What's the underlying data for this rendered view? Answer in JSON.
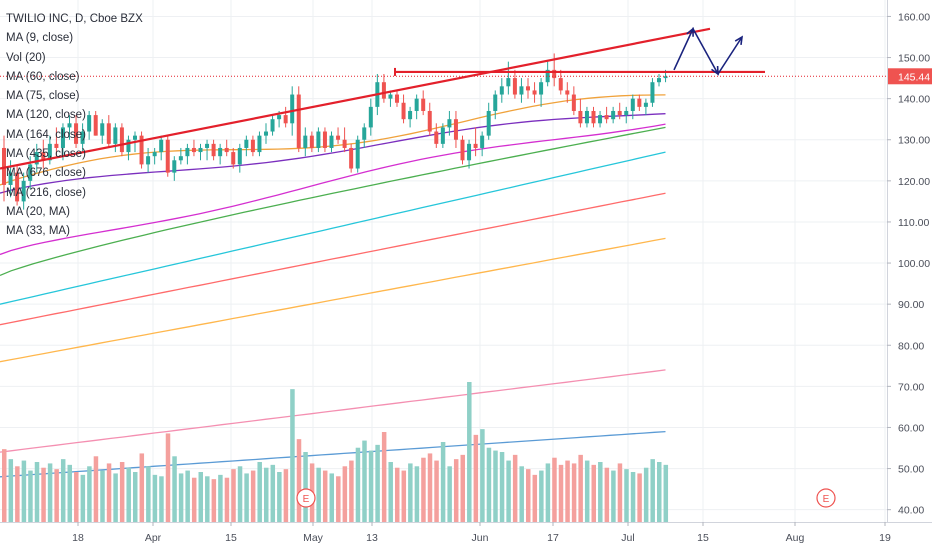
{
  "header": {
    "symbol_line": "TWILIO INC, D, Cboe BZX"
  },
  "legend_items": [
    "MA (9, close)",
    "Vol (20)",
    "MA (60, close)",
    "MA (75, close)",
    "MA (120, close)",
    "MA (164, close)",
    "MA (435, close)",
    "MA (676, close)",
    "MA (216, close)",
    "MA (20, MA)",
    "MA (33, MA)"
  ],
  "price_axis": {
    "ticks": [
      "160.00",
      "150.00",
      "140.00",
      "130.00",
      "120.00",
      "110.00",
      "100.00",
      "90.00",
      "80.00",
      "70.00",
      "60.00",
      "50.00",
      "40.00"
    ],
    "current_price_label": "145.44"
  },
  "time_axis": {
    "ticks": [
      "18",
      "Apr",
      "15",
      "May",
      "13",
      "Jun",
      "17",
      "Jul",
      "15",
      "Aug",
      "19"
    ]
  },
  "events": {
    "label": "E"
  },
  "colors": {
    "up": "#26a69a",
    "down": "#ef5350",
    "vol_up": "#8fd0c7",
    "vol_down": "#f4a09d",
    "trendline": "#e3202b",
    "projection": "#1a237e",
    "price_label_bg": "#ef5350",
    "grid": "#eef0f3"
  },
  "chart_data": {
    "type": "candlestick",
    "y_axis_range": [
      37,
      164
    ],
    "candles": [
      {
        "o": 128,
        "h": 131,
        "l": 115,
        "c": 119,
        "v": 5100
      },
      {
        "o": 119,
        "h": 125,
        "l": 116,
        "c": 122,
        "v": 4400
      },
      {
        "o": 122,
        "h": 124,
        "l": 114,
        "c": 115,
        "v": 3900
      },
      {
        "o": 115,
        "h": 122,
        "l": 113,
        "c": 120,
        "v": 4300
      },
      {
        "o": 120,
        "h": 126,
        "l": 118,
        "c": 124,
        "v": 3600
      },
      {
        "o": 124,
        "h": 129,
        "l": 122,
        "c": 127,
        "v": 4200
      },
      {
        "o": 127,
        "h": 130,
        "l": 123,
        "c": 125,
        "v": 3800
      },
      {
        "o": 125,
        "h": 131,
        "l": 124,
        "c": 129,
        "v": 4100
      },
      {
        "o": 129,
        "h": 133,
        "l": 126,
        "c": 128,
        "v": 3700
      },
      {
        "o": 128,
        "h": 134,
        "l": 125,
        "c": 133,
        "v": 4400
      },
      {
        "o": 133,
        "h": 136,
        "l": 130,
        "c": 134,
        "v": 4000
      },
      {
        "o": 134,
        "h": 136,
        "l": 128,
        "c": 129,
        "v": 3500
      },
      {
        "o": 129,
        "h": 134,
        "l": 127,
        "c": 132,
        "v": 3300
      },
      {
        "o": 132,
        "h": 137,
        "l": 130,
        "c": 136,
        "v": 3900
      },
      {
        "o": 136,
        "h": 137,
        "l": 131,
        "c": 131,
        "v": 4600
      },
      {
        "o": 131,
        "h": 135,
        "l": 129,
        "c": 134,
        "v": 3600
      },
      {
        "o": 134,
        "h": 136,
        "l": 128,
        "c": 129,
        "v": 4100
      },
      {
        "o": 129,
        "h": 134,
        "l": 127,
        "c": 133,
        "v": 3400
      },
      {
        "o": 133,
        "h": 134,
        "l": 126,
        "c": 127,
        "v": 4200
      },
      {
        "o": 127,
        "h": 131,
        "l": 125,
        "c": 130,
        "v": 3800
      },
      {
        "o": 130,
        "h": 132,
        "l": 127,
        "c": 131,
        "v": 3500
      },
      {
        "o": 131,
        "h": 132,
        "l": 123,
        "c": 124,
        "v": 4800
      },
      {
        "o": 124,
        "h": 128,
        "l": 122,
        "c": 126,
        "v": 3900
      },
      {
        "o": 126,
        "h": 128,
        "l": 124,
        "c": 127,
        "v": 3300
      },
      {
        "o": 127,
        "h": 131,
        "l": 125,
        "c": 130,
        "v": 3200
      },
      {
        "o": 130,
        "h": 131,
        "l": 121,
        "c": 122,
        "v": 6200
      },
      {
        "o": 122,
        "h": 126,
        "l": 120,
        "c": 125,
        "v": 4600
      },
      {
        "o": 125,
        "h": 128,
        "l": 124,
        "c": 126,
        "v": 3400
      },
      {
        "o": 126,
        "h": 129,
        "l": 124,
        "c": 128,
        "v": 3600
      },
      {
        "o": 128,
        "h": 130,
        "l": 126,
        "c": 127,
        "v": 3100
      },
      {
        "o": 127,
        "h": 129,
        "l": 125,
        "c": 128,
        "v": 3500
      },
      {
        "o": 128,
        "h": 130,
        "l": 125,
        "c": 129,
        "v": 3200
      },
      {
        "o": 129,
        "h": 130,
        "l": 125,
        "c": 126,
        "v": 3000
      },
      {
        "o": 126,
        "h": 129,
        "l": 124,
        "c": 128,
        "v": 3300
      },
      {
        "o": 128,
        "h": 130,
        "l": 126,
        "c": 127,
        "v": 3100
      },
      {
        "o": 127,
        "h": 128,
        "l": 123,
        "c": 124,
        "v": 3700
      },
      {
        "o": 124,
        "h": 129,
        "l": 122,
        "c": 128,
        "v": 3900
      },
      {
        "o": 128,
        "h": 131,
        "l": 126,
        "c": 130,
        "v": 3400
      },
      {
        "o": 130,
        "h": 131,
        "l": 126,
        "c": 127,
        "v": 3600
      },
      {
        "o": 127,
        "h": 132,
        "l": 126,
        "c": 131,
        "v": 4200
      },
      {
        "o": 131,
        "h": 134,
        "l": 129,
        "c": 132,
        "v": 3800
      },
      {
        "o": 132,
        "h": 136,
        "l": 131,
        "c": 135,
        "v": 4000
      },
      {
        "o": 135,
        "h": 137,
        "l": 133,
        "c": 136,
        "v": 3500
      },
      {
        "o": 136,
        "h": 138,
        "l": 133,
        "c": 134,
        "v": 3700
      },
      {
        "o": 134,
        "h": 143,
        "l": 131,
        "c": 141,
        "v": 9300
      },
      {
        "o": 141,
        "h": 143,
        "l": 127,
        "c": 128,
        "v": 5800
      },
      {
        "o": 128,
        "h": 133,
        "l": 126,
        "c": 131,
        "v": 4900
      },
      {
        "o": 131,
        "h": 132,
        "l": 127,
        "c": 128,
        "v": 4100
      },
      {
        "o": 128,
        "h": 133,
        "l": 127,
        "c": 132,
        "v": 3800
      },
      {
        "o": 132,
        "h": 133,
        "l": 127,
        "c": 128,
        "v": 3600
      },
      {
        "o": 128,
        "h": 132,
        "l": 127,
        "c": 131,
        "v": 3400
      },
      {
        "o": 131,
        "h": 133,
        "l": 129,
        "c": 130,
        "v": 3200
      },
      {
        "o": 130,
        "h": 133,
        "l": 127,
        "c": 128,
        "v": 3900
      },
      {
        "o": 128,
        "h": 129,
        "l": 122,
        "c": 123,
        "v": 4300
      },
      {
        "o": 123,
        "h": 131,
        "l": 122,
        "c": 130,
        "v": 5200
      },
      {
        "o": 130,
        "h": 134,
        "l": 128,
        "c": 133,
        "v": 5700
      },
      {
        "o": 133,
        "h": 140,
        "l": 131,
        "c": 138,
        "v": 5000
      },
      {
        "o": 138,
        "h": 146,
        "l": 136,
        "c": 144,
        "v": 5400
      },
      {
        "o": 144,
        "h": 146,
        "l": 139,
        "c": 140,
        "v": 6300
      },
      {
        "o": 140,
        "h": 142,
        "l": 138,
        "c": 141,
        "v": 4200
      },
      {
        "o": 141,
        "h": 142,
        "l": 138,
        "c": 139,
        "v": 3800
      },
      {
        "o": 139,
        "h": 141,
        "l": 134,
        "c": 135,
        "v": 3600
      },
      {
        "o": 135,
        "h": 138,
        "l": 133,
        "c": 137,
        "v": 4100
      },
      {
        "o": 137,
        "h": 141,
        "l": 135,
        "c": 140,
        "v": 3900
      },
      {
        "o": 140,
        "h": 142,
        "l": 136,
        "c": 137,
        "v": 4500
      },
      {
        "o": 137,
        "h": 139,
        "l": 131,
        "c": 132,
        "v": 4800
      },
      {
        "o": 132,
        "h": 134,
        "l": 128,
        "c": 129,
        "v": 4300
      },
      {
        "o": 129,
        "h": 134,
        "l": 128,
        "c": 133,
        "v": 5600
      },
      {
        "o": 133,
        "h": 137,
        "l": 131,
        "c": 135,
        "v": 3900
      },
      {
        "o": 135,
        "h": 137,
        "l": 128,
        "c": 130,
        "v": 4400
      },
      {
        "o": 130,
        "h": 131,
        "l": 124,
        "c": 125,
        "v": 4700
      },
      {
        "o": 125,
        "h": 130,
        "l": 123,
        "c": 129,
        "v": 9800
      },
      {
        "o": 129,
        "h": 133,
        "l": 126,
        "c": 128,
        "v": 6100
      },
      {
        "o": 128,
        "h": 132,
        "l": 126,
        "c": 131,
        "v": 6500
      },
      {
        "o": 131,
        "h": 139,
        "l": 130,
        "c": 137,
        "v": 5200
      },
      {
        "o": 137,
        "h": 142,
        "l": 135,
        "c": 141,
        "v": 5000
      },
      {
        "o": 141,
        "h": 145,
        "l": 139,
        "c": 143,
        "v": 4900
      },
      {
        "o": 143,
        "h": 149,
        "l": 141,
        "c": 145,
        "v": 4300
      },
      {
        "o": 145,
        "h": 147,
        "l": 140,
        "c": 141,
        "v": 4700
      },
      {
        "o": 141,
        "h": 145,
        "l": 139,
        "c": 143,
        "v": 3900
      },
      {
        "o": 143,
        "h": 145,
        "l": 140,
        "c": 142,
        "v": 3700
      },
      {
        "o": 142,
        "h": 144,
        "l": 139,
        "c": 141,
        "v": 3300
      },
      {
        "o": 141,
        "h": 145,
        "l": 138,
        "c": 144,
        "v": 3600
      },
      {
        "o": 144,
        "h": 149,
        "l": 143,
        "c": 147,
        "v": 4100
      },
      {
        "o": 147,
        "h": 151,
        "l": 143,
        "c": 145,
        "v": 4500
      },
      {
        "o": 145,
        "h": 147,
        "l": 141,
        "c": 142,
        "v": 4000
      },
      {
        "o": 142,
        "h": 144,
        "l": 139,
        "c": 141,
        "v": 4300
      },
      {
        "o": 141,
        "h": 143,
        "l": 136,
        "c": 137,
        "v": 4100
      },
      {
        "o": 137,
        "h": 140,
        "l": 133,
        "c": 134,
        "v": 4700
      },
      {
        "o": 134,
        "h": 138,
        "l": 133,
        "c": 137,
        "v": 4300
      },
      {
        "o": 137,
        "h": 138,
        "l": 133,
        "c": 134,
        "v": 4000
      },
      {
        "o": 134,
        "h": 137,
        "l": 133,
        "c": 136,
        "v": 4200
      },
      {
        "o": 136,
        "h": 138,
        "l": 134,
        "c": 135,
        "v": 3800
      },
      {
        "o": 135,
        "h": 138,
        "l": 134,
        "c": 137,
        "v": 3600
      },
      {
        "o": 137,
        "h": 139,
        "l": 135,
        "c": 136,
        "v": 4100
      },
      {
        "o": 136,
        "h": 138,
        "l": 134,
        "c": 137,
        "v": 3700
      },
      {
        "o": 137,
        "h": 141,
        "l": 135,
        "c": 140,
        "v": 3500
      },
      {
        "o": 140,
        "h": 141,
        "l": 137,
        "c": 138,
        "v": 3400
      },
      {
        "o": 138,
        "h": 140,
        "l": 136,
        "c": 139,
        "v": 3800
      },
      {
        "o": 139,
        "h": 145,
        "l": 138,
        "c": 144,
        "v": 4400
      },
      {
        "o": 144,
        "h": 146,
        "l": 143,
        "c": 145,
        "v": 4200
      },
      {
        "o": 145,
        "h": 147,
        "l": 144,
        "c": 145.44,
        "v": 4000
      }
    ],
    "moving_averages": [
      {
        "name": "MA (9, close)",
        "color": "#f0a23b",
        "start": 119,
        "end": 140
      },
      {
        "name": "MA (60, close)",
        "color": "#7b2fbe",
        "start": 116,
        "end": 137
      },
      {
        "name": "MA (75, close)",
        "color": "#d42fd0",
        "start": 101,
        "end": 135
      },
      {
        "name": "MA (120, close)",
        "color": "#4caf50",
        "start": 97,
        "end": 133
      },
      {
        "name": "MA (164, close)",
        "color": "#26c6da",
        "start": 90,
        "end": 127
      },
      {
        "name": "MA (435, close)",
        "color": "#ff6b6b",
        "start": 85,
        "end": 117
      },
      {
        "name": "MA (676, close)",
        "color": "#ffb74d",
        "start": 76,
        "end": 106
      },
      {
        "name": "MA (216, close)",
        "color": "#f48fb1",
        "start": 54,
        "end": 74
      },
      {
        "name": "MA (33, MA)",
        "color": "#5b9bd5",
        "start": 48,
        "end": 59
      }
    ],
    "annotations": {
      "upper_trendline": {
        "from_price": 123,
        "to_price": 157
      },
      "horizontal_resistance": {
        "price": 146.5
      },
      "projection_path": [
        147,
        157,
        146,
        155
      ]
    }
  }
}
